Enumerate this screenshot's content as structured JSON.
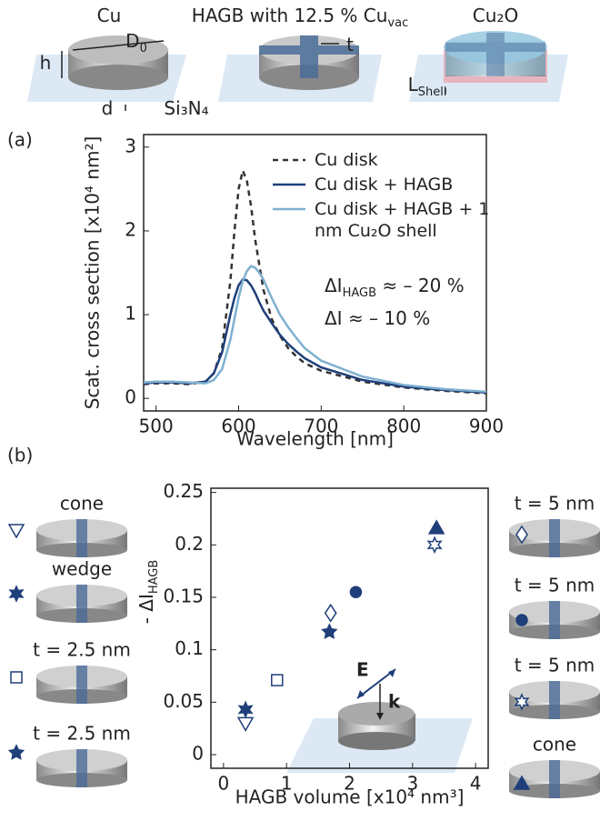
{
  "schematic": {
    "labels": [
      [
        "Cu"
      ],
      [
        "HAGB with 12.5 % Cu",
        "vac"
      ],
      [
        "Cu₂O"
      ],
      [
        "h"
      ],
      [
        "D",
        "0"
      ],
      [
        "t"
      ],
      [
        "d"
      ],
      [
        "Si₃N₄"
      ],
      [
        "L",
        "Shell"
      ]
    ]
  },
  "panel_labels": [
    "(a)",
    "(b)"
  ],
  "chart_data": [
    {
      "type": "line",
      "x_label": "Wavelength [nm]",
      "y_label": "Scat. cross section [x10⁴ nm²]",
      "xlim": [
        485,
        900
      ],
      "ylim": [
        -0.15,
        3.15
      ],
      "xticks": [
        500,
        600,
        700,
        800,
        900
      ],
      "yticks": [
        0,
        1,
        2,
        3
      ],
      "x": [
        485,
        500,
        520,
        540,
        560,
        570,
        580,
        590,
        595,
        600,
        605,
        610,
        615,
        620,
        625,
        630,
        640,
        650,
        660,
        670,
        680,
        700,
        750,
        800,
        850,
        900
      ],
      "series": [
        {
          "name": "Cu disk",
          "color": "#333333",
          "dashed": true,
          "values": [
            0.17,
            0.18,
            0.18,
            0.17,
            0.2,
            0.3,
            0.6,
            1.4,
            2.0,
            2.5,
            2.72,
            2.6,
            2.3,
            1.9,
            1.6,
            1.3,
            0.95,
            0.75,
            0.6,
            0.5,
            0.42,
            0.33,
            0.2,
            0.13,
            0.09,
            0.06
          ]
        },
        {
          "name": "Cu disk + HAGB",
          "color": "#1f3f7a",
          "dashed": false,
          "values": [
            0.18,
            0.19,
            0.19,
            0.18,
            0.2,
            0.3,
            0.55,
            1.0,
            1.2,
            1.35,
            1.42,
            1.41,
            1.35,
            1.26,
            1.15,
            1.05,
            0.9,
            0.76,
            0.65,
            0.56,
            0.48,
            0.37,
            0.22,
            0.14,
            0.1,
            0.07
          ]
        },
        {
          "name": "Cu disk + HAGB + 1 nm Cu₂O shell",
          "color": "#7fb0d0",
          "dashed": false,
          "values": [
            0.19,
            0.2,
            0.2,
            0.19,
            0.18,
            0.22,
            0.35,
            0.7,
            0.95,
            1.2,
            1.4,
            1.52,
            1.58,
            1.56,
            1.5,
            1.42,
            1.2,
            1.0,
            0.85,
            0.72,
            0.6,
            0.45,
            0.26,
            0.16,
            0.11,
            0.08
          ]
        }
      ],
      "annotations": [
        {
          "text": [
            "ΔI",
            "HAGB",
            " ≈ – 20 %"
          ],
          "color": "#1f3f7a"
        },
        {
          "text": [
            "ΔI ≈ – 10 %"
          ],
          "color": "#7fb0d0"
        }
      ]
    },
    {
      "type": "scatter",
      "x_label": "HAGB volume [x10⁴ nm³]",
      "y_label": [
        "- ΔI",
        "HAGB"
      ],
      "xlim": [
        -0.2,
        4.2
      ],
      "ylim": [
        -0.013,
        0.254
      ],
      "xticks": [
        0,
        1,
        2,
        3,
        4
      ],
      "yticks": [
        0,
        0.05,
        0.1,
        0.15,
        0.2,
        0.25
      ],
      "color": "#1f3f7a",
      "annotations": [
        "E",
        "k"
      ],
      "series": [
        {
          "name": "cone",
          "marker": "triangle-down",
          "filled": false,
          "x": [
            0.35
          ],
          "values": [
            0.03
          ]
        },
        {
          "name": "wedge",
          "marker": "star6",
          "filled": true,
          "x": [
            0.35
          ],
          "values": [
            0.043
          ]
        },
        {
          "name": "t = 2.5 nm",
          "marker": "square",
          "filled": false,
          "x": [
            0.85
          ],
          "values": [
            0.071
          ]
        },
        {
          "name": "t = 2.5 nm",
          "marker": "star5",
          "filled": true,
          "x": [
            1.68
          ],
          "values": [
            0.117
          ]
        },
        {
          "name": "t = 5 nm",
          "marker": "diamond",
          "filled": false,
          "x": [
            1.7
          ],
          "values": [
            0.135
          ]
        },
        {
          "name": "t = 5 nm",
          "marker": "circle",
          "filled": true,
          "x": [
            2.1
          ],
          "values": [
            0.155
          ]
        },
        {
          "name": "t = 5 nm",
          "marker": "star6",
          "filled": false,
          "x": [
            3.35
          ],
          "values": [
            0.2
          ]
        },
        {
          "name": "cone",
          "marker": "triangle-up",
          "filled": true,
          "x": [
            3.38
          ],
          "values": [
            0.216
          ]
        }
      ]
    }
  ]
}
